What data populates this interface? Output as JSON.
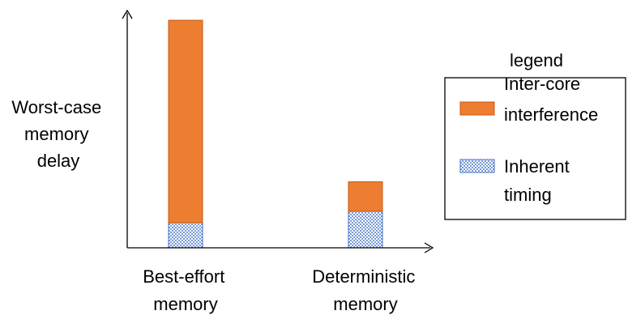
{
  "chart_data": {
    "type": "bar",
    "stacked": true,
    "categories": [
      "Best-effort memory",
      "Deterministic memory"
    ],
    "category_lines": [
      [
        "Best-effort",
        "memory"
      ],
      [
        "Deterministic",
        "memory"
      ]
    ],
    "ylabel": "Worst-case memory delay",
    "ylabel_lines": [
      "Worst-case",
      "memory",
      "delay"
    ],
    "xlabel": "",
    "ylim": [
      0,
      100
    ],
    "grid": false,
    "axis_ticks": false,
    "legend": {
      "title": "legend",
      "placement": "right",
      "entries": [
        {
          "label_lines": [
            "Inter-core",
            "interference"
          ],
          "series": 0
        },
        {
          "label_lines": [
            "Inherent",
            "timing"
          ],
          "series": 1
        }
      ]
    },
    "series": [
      {
        "name": "Inter-core interference",
        "values": [
          89,
          13
        ],
        "color": "#ED7D31",
        "edge": "#C55A11",
        "pattern": "solid"
      },
      {
        "name": "Inherent timing",
        "values": [
          11,
          16
        ],
        "color": "#5B8BD6",
        "edge": "#4472C4",
        "pattern": "dots"
      }
    ],
    "stack_order": [
      1,
      0
    ]
  }
}
